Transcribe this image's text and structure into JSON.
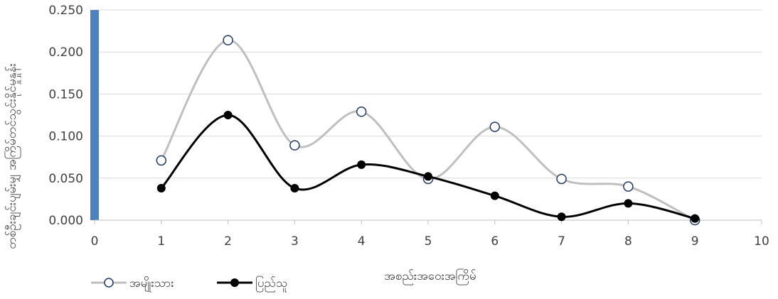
{
  "chart_data": {
    "type": "line",
    "title": "",
    "xlabel": "အစည်းအဝေးအကြိမ်",
    "ylabel": "တစ်ဦးချင်းပျမ်းမျှ အကြိမ်တင်သွင်းနိုင်မှုနှုန်း",
    "x": [
      1,
      2,
      3,
      4,
      5,
      6,
      7,
      8,
      9
    ],
    "xlim": [
      0,
      10
    ],
    "ylim": [
      0,
      0.25
    ],
    "x_ticks": [
      "0",
      "1",
      "2",
      "3",
      "4",
      "5",
      "6",
      "7",
      "8",
      "9",
      "10"
    ],
    "y_ticks": [
      "0.000",
      "0.050",
      "0.100",
      "0.150",
      "0.200",
      "0.250"
    ],
    "grid": "horizontal",
    "legend_position": "bottom-left",
    "highlight_bar": {
      "x": 0,
      "value": 0.25,
      "color": "#4f81bd"
    },
    "series": [
      {
        "name": "အမျိုးသား",
        "values": [
          0.071,
          0.214,
          0.089,
          0.129,
          0.049,
          0.111,
          0.049,
          0.04,
          0.0
        ],
        "color": "#bfbfbf",
        "marker": "hollow-circle",
        "marker_edge": "#1f3864"
      },
      {
        "name": "ပြည်သူ",
        "values": [
          0.038,
          0.125,
          0.038,
          0.066,
          0.052,
          0.029,
          0.004,
          0.02,
          0.002
        ],
        "color": "#000000",
        "marker": "filled-circle",
        "marker_edge": "#000000"
      }
    ]
  }
}
